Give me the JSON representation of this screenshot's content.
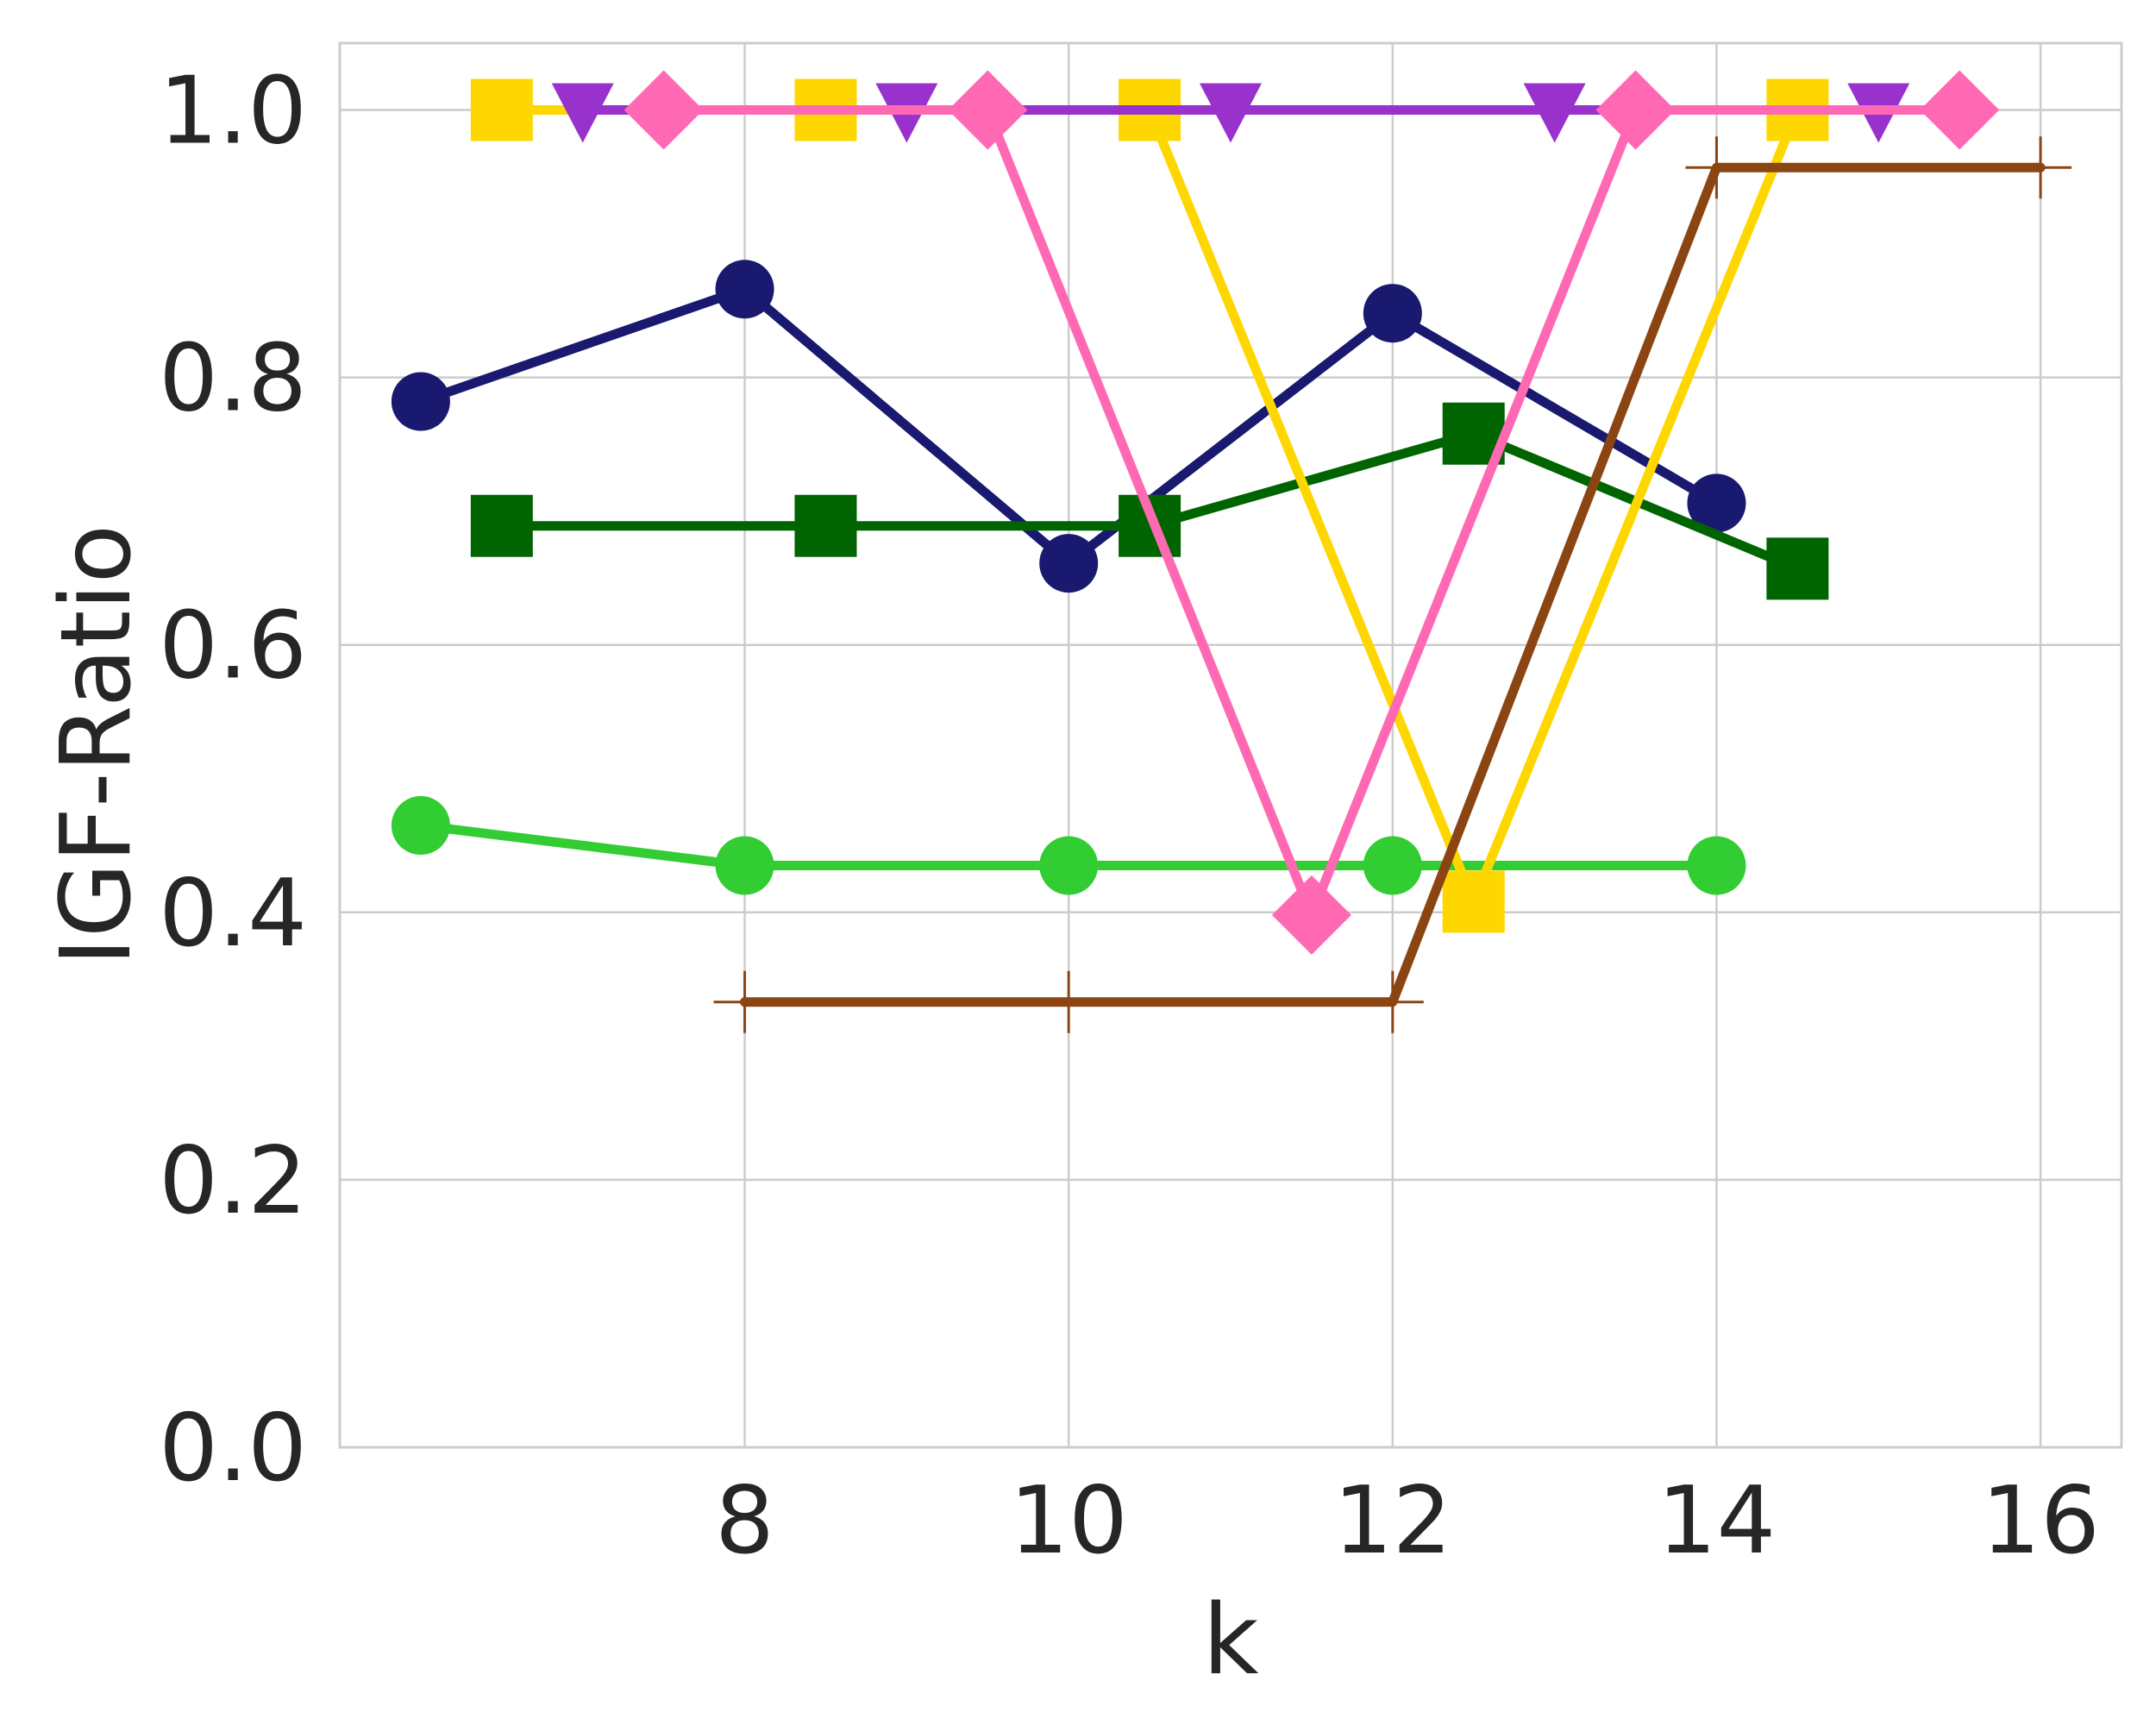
{
  "chart_data": {
    "type": "line",
    "title": "",
    "xlabel": "k",
    "ylabel": "IGF-Ratio",
    "xlim": [
      5.5,
      16.5
    ],
    "ylim": [
      0.0,
      1.05
    ],
    "x_ticks": [
      8,
      10,
      12,
      14,
      16
    ],
    "x_tick_labels": [
      "8",
      "10",
      "12",
      "14",
      "16"
    ],
    "y_ticks": [
      0.0,
      0.2,
      0.4,
      0.6,
      0.8,
      1.0
    ],
    "y_tick_labels": [
      "0.0",
      "0.2",
      "0.4",
      "0.6",
      "0.8",
      "1.0"
    ],
    "grid": true,
    "legend": "none",
    "series": [
      {
        "color": "#32CD32",
        "marker": "circle",
        "points": [
          [
            6,
            0.465
          ],
          [
            8,
            0.435
          ],
          [
            10,
            0.435
          ],
          [
            12,
            0.435
          ],
          [
            14,
            0.435
          ]
        ]
      },
      {
        "color": "#191970",
        "marker": "circle",
        "points": [
          [
            6,
            0.782
          ],
          [
            8,
            0.866
          ],
          [
            10,
            0.661
          ],
          [
            12,
            0.848
          ],
          [
            14,
            0.706
          ]
        ]
      },
      {
        "color": "#006400",
        "marker": "square",
        "points": [
          [
            6.5,
            0.689
          ],
          [
            8.5,
            0.689
          ],
          [
            10.5,
            0.689
          ],
          [
            12.5,
            0.758
          ],
          [
            14.5,
            0.657
          ]
        ]
      },
      {
        "color": "#FFD700",
        "marker": "square",
        "points": [
          [
            6.5,
            1.0
          ],
          [
            8.5,
            1.0
          ],
          [
            10.5,
            1.0
          ],
          [
            12.5,
            0.408
          ],
          [
            14.5,
            1.0
          ]
        ]
      },
      {
        "color": "#9932CC",
        "marker": "triangle-down",
        "points": [
          [
            7,
            1.0
          ],
          [
            9,
            1.0
          ],
          [
            11,
            1.0
          ],
          [
            13,
            1.0
          ],
          [
            15,
            1.0
          ]
        ]
      },
      {
        "color": "#FF69B4",
        "marker": "diamond",
        "points": [
          [
            7.5,
            1.0
          ],
          [
            9.5,
            1.0
          ],
          [
            11.5,
            0.398
          ],
          [
            13.5,
            1.0
          ],
          [
            15.5,
            1.0
          ]
        ]
      },
      {
        "color": "#8B4513",
        "marker": "plus",
        "points": [
          [
            8,
            0.333
          ],
          [
            10,
            0.333
          ],
          [
            12,
            0.333
          ],
          [
            14,
            0.957
          ],
          [
            16,
            0.957
          ]
        ]
      }
    ]
  }
}
